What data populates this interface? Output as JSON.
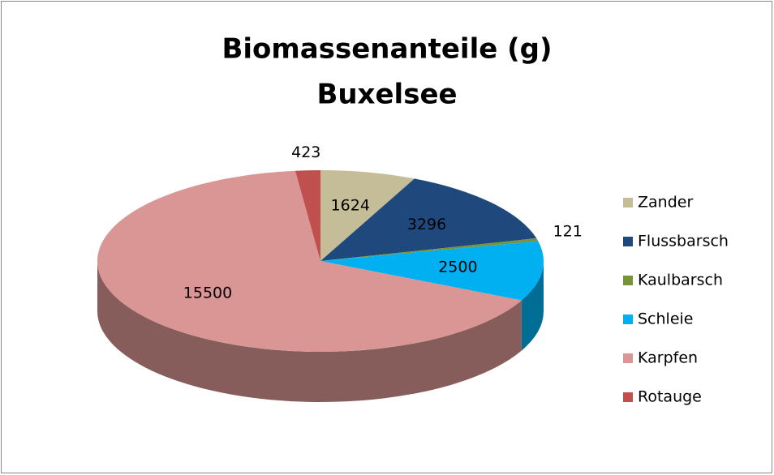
{
  "chart_data": {
    "type": "pie3d",
    "title": [
      "Biomassenanteile (g)",
      "Buxelsee"
    ],
    "categories": [
      "Zander",
      "Flussbarsch",
      "Kaulbarsch",
      "Schleie",
      "Karpfen",
      "Rotauge"
    ],
    "values": [
      1624,
      3296,
      121,
      2500,
      15500,
      423
    ],
    "colors": [
      "#c4bd97",
      "#1f497d",
      "#77933c",
      "#00b0f0",
      "#d99694",
      "#c0504d"
    ],
    "legend": "right"
  }
}
